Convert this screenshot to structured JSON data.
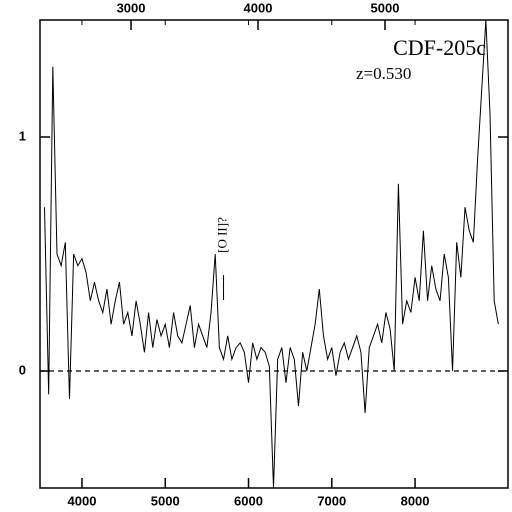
{
  "chart_data": {
    "type": "line",
    "title": "CDF-205c",
    "subtitle": "z=0.530",
    "annotations": [
      {
        "text": "[O II]?",
        "x": 5700
      }
    ],
    "color": "#000000",
    "x": [
      3550,
      3600,
      3650,
      3700,
      3750,
      3800,
      3850,
      3900,
      3950,
      4000,
      4050,
      4100,
      4150,
      4200,
      4250,
      4300,
      4350,
      4400,
      4450,
      4500,
      4550,
      4600,
      4650,
      4700,
      4750,
      4800,
      4850,
      4900,
      4950,
      5000,
      5050,
      5100,
      5150,
      5200,
      5250,
      5300,
      5350,
      5400,
      5450,
      5500,
      5550,
      5600,
      5650,
      5700,
      5750,
      5800,
      5850,
      5900,
      5950,
      6000,
      6050,
      6100,
      6150,
      6200,
      6250,
      6300,
      6350,
      6400,
      6450,
      6500,
      6550,
      6600,
      6650,
      6700,
      6750,
      6800,
      6850,
      6900,
      6950,
      7000,
      7050,
      7100,
      7150,
      7200,
      7250,
      7300,
      7350,
      7400,
      7450,
      7500,
      7550,
      7600,
      7650,
      7700,
      7750,
      7800,
      7850,
      7900,
      7950,
      8000,
      8050,
      8100,
      8150,
      8200,
      8250,
      8300,
      8350,
      8400,
      8450,
      8500,
      8550,
      8600,
      8650,
      8700,
      8750,
      8800,
      8850,
      8900,
      8950,
      9000
    ],
    "values": [
      0.7,
      -0.1,
      1.3,
      0.5,
      0.45,
      0.55,
      -0.12,
      0.5,
      0.45,
      0.48,
      0.42,
      0.3,
      0.38,
      0.3,
      0.25,
      0.35,
      0.2,
      0.3,
      0.38,
      0.2,
      0.25,
      0.15,
      0.3,
      0.2,
      0.08,
      0.25,
      0.1,
      0.22,
      0.15,
      0.2,
      0.1,
      0.25,
      0.15,
      0.12,
      0.2,
      0.28,
      0.1,
      0.2,
      0.15,
      0.1,
      0.25,
      0.5,
      0.1,
      0.05,
      0.15,
      0.05,
      0.1,
      0.12,
      0.08,
      -0.05,
      0.12,
      0.05,
      0.1,
      0.08,
      0.02,
      -0.5,
      0.05,
      0.1,
      -0.05,
      0.1,
      0.05,
      -0.15,
      0.08,
      0.0,
      0.1,
      0.2,
      0.35,
      0.15,
      0.05,
      0.1,
      -0.02,
      0.08,
      0.12,
      0.05,
      0.1,
      0.15,
      0.08,
      -0.18,
      0.1,
      0.15,
      0.2,
      0.12,
      0.25,
      0.18,
      0.0,
      0.8,
      0.2,
      0.3,
      0.25,
      0.4,
      0.3,
      0.6,
      0.3,
      0.45,
      0.35,
      0.3,
      0.5,
      0.4,
      0.0,
      0.55,
      0.4,
      0.7,
      0.6,
      0.55,
      0.9,
      1.2,
      1.5,
      1.1,
      0.3,
      0.2
    ],
    "xlim": [
      3496,
      9116
    ],
    "xticks": [
      4000,
      5000,
      6000,
      7000,
      8000
    ],
    "x2lim": [
      2283,
      5969
    ],
    "x2ticks": [
      3000,
      4000,
      5000
    ],
    "ylim": [
      -0.5,
      1.5
    ],
    "yticks": [
      0,
      1
    ],
    "zero_line": true
  }
}
